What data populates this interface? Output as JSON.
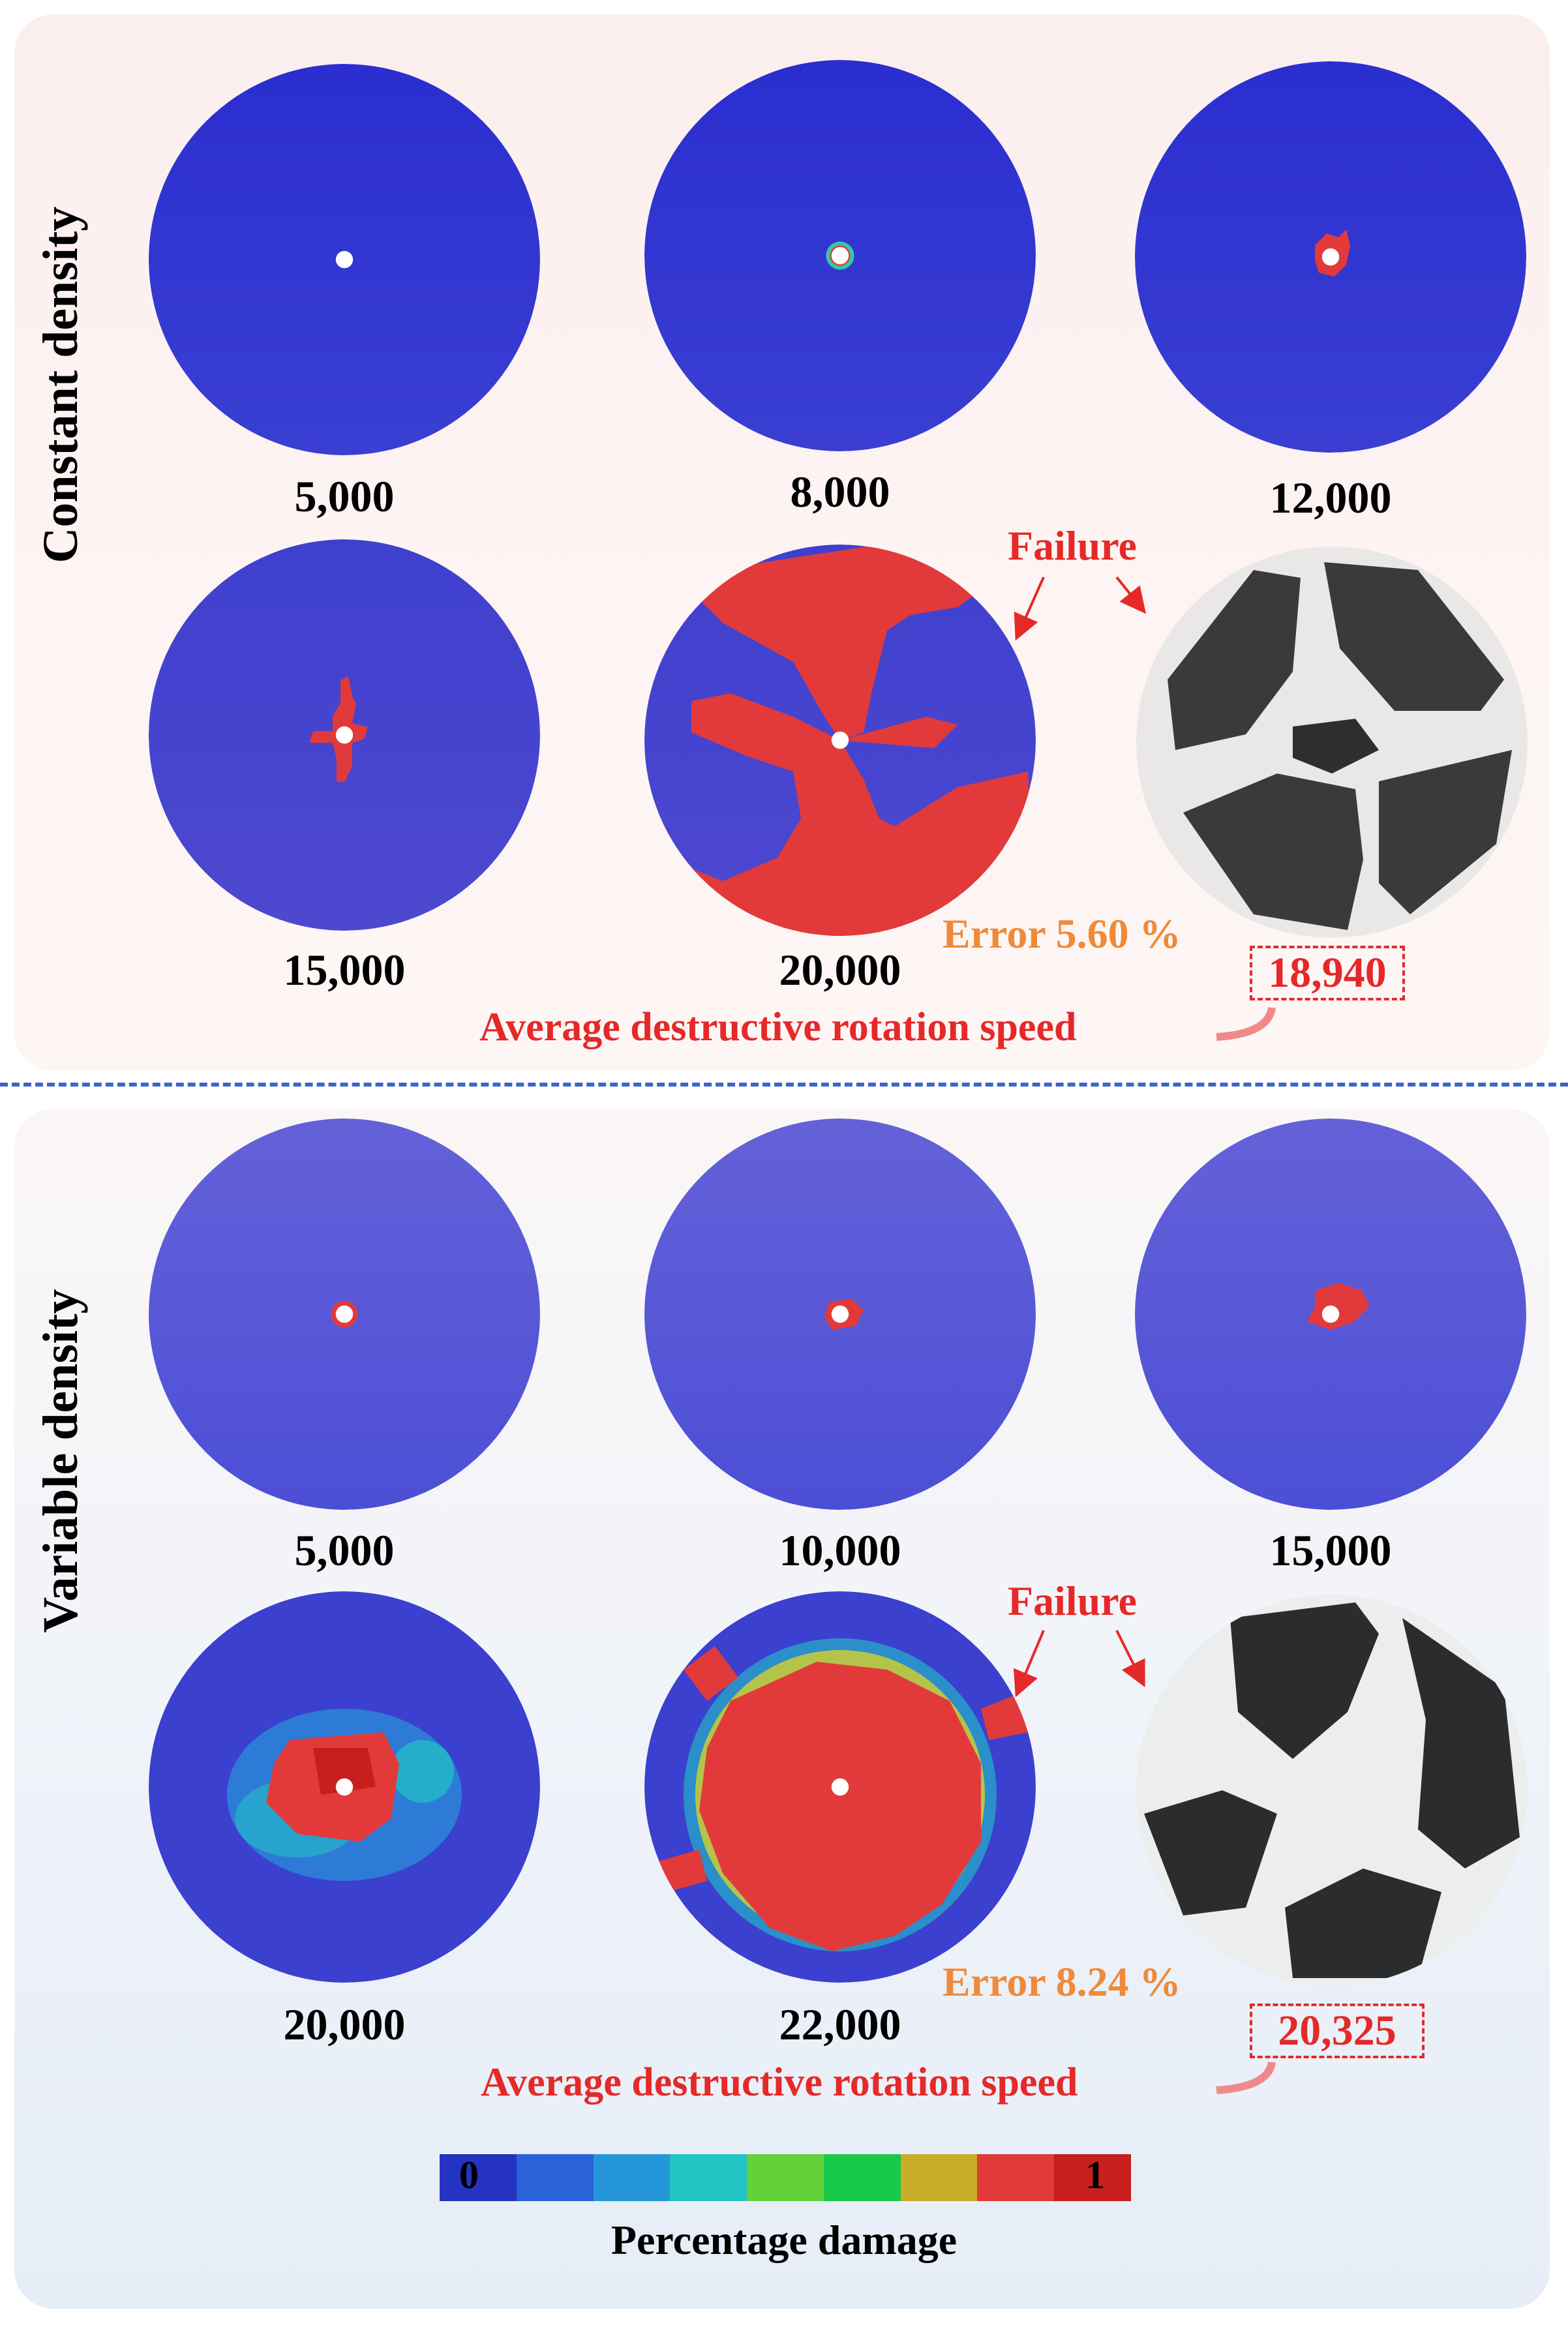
{
  "sections": [
    {
      "title": "Constant density",
      "speeds": [
        "5,000",
        "8,000",
        "12,000",
        "15,000",
        "20,000"
      ],
      "failure_label": "Failure",
      "error_label": "Error 5.60 %",
      "average_speed": "18,940",
      "average_label": "Average destructive rotation speed"
    },
    {
      "title": "Variable density",
      "speeds": [
        "5,000",
        "10,000",
        "15,000",
        "20,000",
        "22,000"
      ],
      "failure_label": "Failure",
      "error_label": "Error 8.24 %",
      "average_speed": "20,325",
      "average_label": "Average destructive rotation speed"
    }
  ],
  "colorbar": {
    "min_label": "0",
    "max_label": "1",
    "title": "Percentage damage",
    "colors": [
      "#2433c2",
      "#2a62d8",
      "#2597d8",
      "#22c4c4",
      "#63d23a",
      "#18c94a",
      "#c7ad2a",
      "#e23a3a",
      "#c81e1e"
    ]
  },
  "colors": {
    "disc_blue": "#3b42cf",
    "damage_red": "#e23a3a",
    "label_red": "#e52929",
    "error_orange": "#ef8a3a",
    "divider_blue": "#3a67c7"
  }
}
